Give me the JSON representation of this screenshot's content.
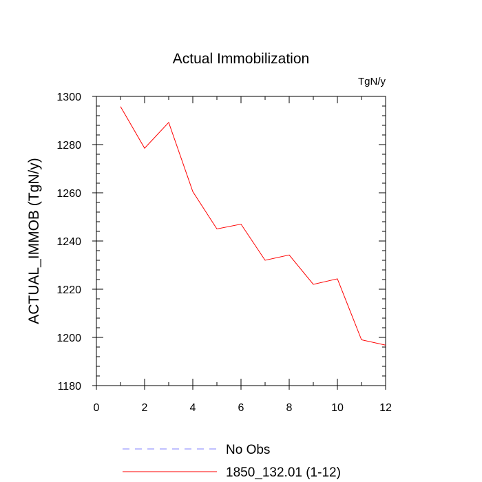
{
  "chart_data": {
    "type": "line",
    "title": "Actual Immobilization",
    "units_label": "TgN/y",
    "xlabel": "",
    "ylabel": "ACTUAL_IMMOB  (TgN/y)",
    "xlim": [
      0,
      12
    ],
    "ylim": [
      1180,
      1300
    ],
    "x_ticks": [
      0,
      2,
      4,
      6,
      8,
      10,
      12
    ],
    "y_ticks": [
      1180,
      1200,
      1220,
      1240,
      1260,
      1280,
      1300
    ],
    "grid": false,
    "legend_position": "bottom",
    "series": [
      {
        "name": "No Obs",
        "color": "#8080ff",
        "dash": "dashed",
        "x": [],
        "values": []
      },
      {
        "name": "1850_132.01 (1-12)",
        "color": "#ff0000",
        "dash": "solid",
        "x": [
          1,
          2,
          3,
          4,
          5,
          6,
          7,
          8,
          9,
          10,
          11,
          12
        ],
        "values": [
          1295.8,
          1278.5,
          1289.2,
          1260.5,
          1245.0,
          1247.0,
          1232.0,
          1234.2,
          1222.0,
          1224.3,
          1199.0,
          1196.8
        ]
      }
    ]
  }
}
